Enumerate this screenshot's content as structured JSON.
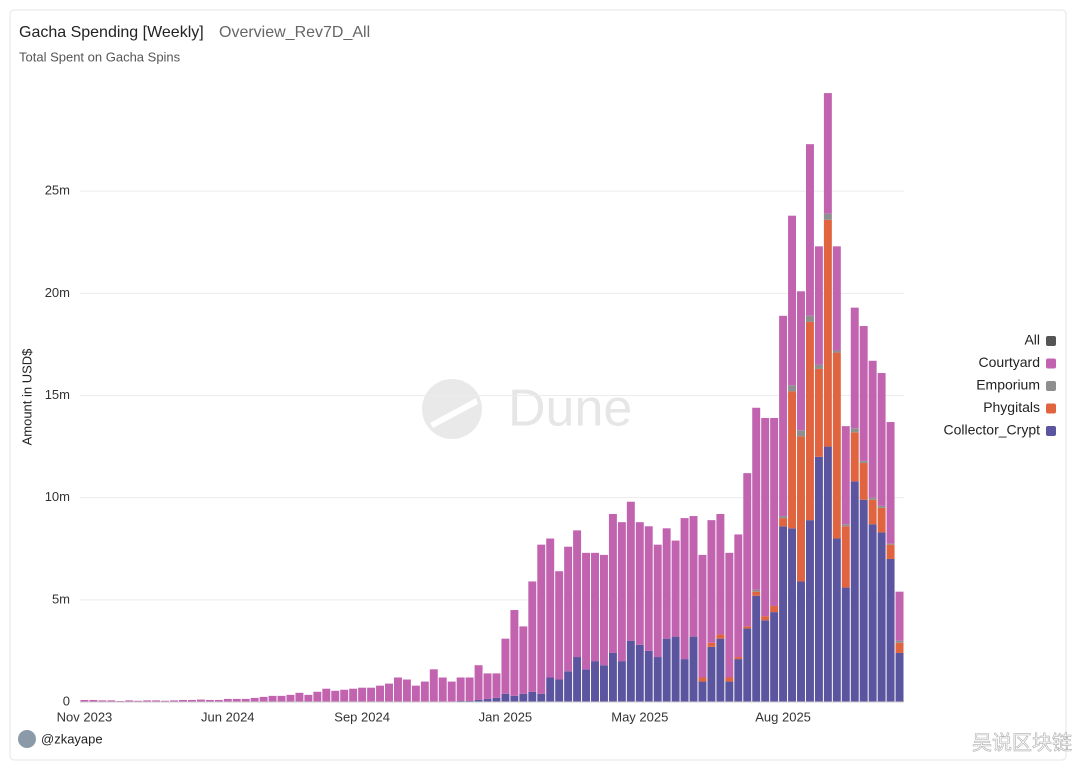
{
  "chart_data": {
    "type": "stacked_bar",
    "title": "Gacha Spending [Weekly]",
    "subtitle": "Overview_Rev7D_All",
    "caption": "Total Spent on Gacha Spins",
    "y_label": "Amount in USD$",
    "author": "@zkayape",
    "watermarks": [
      "Dune",
      "吴说区块链"
    ],
    "grid": true,
    "legend": "right",
    "ylim": [
      0,
      30
    ],
    "yticks": [
      0,
      {
        "value": 5,
        "label": "5m"
      },
      {
        "value": 10,
        "label": "10m"
      },
      {
        "value": 15,
        "label": "15m"
      },
      {
        "value": 20,
        "label": "20m"
      },
      {
        "value": 25,
        "label": "25m"
      }
    ],
    "categories": [
      "Nov 2023",
      null,
      null,
      null,
      null,
      null,
      null,
      null,
      null,
      null,
      null,
      null,
      null,
      null,
      null,
      null,
      "Jun 2024",
      null,
      null,
      null,
      null,
      null,
      null,
      null,
      null,
      null,
      null,
      null,
      null,
      null,
      null,
      "Sep 2024",
      null,
      null,
      null,
      null,
      null,
      null,
      null,
      null,
      null,
      null,
      null,
      null,
      null,
      null,
      null,
      "Jan 2025",
      null,
      null,
      null,
      null,
      null,
      null,
      null,
      null,
      null,
      null,
      null,
      null,
      null,
      null,
      "May 2025",
      null,
      null,
      null,
      null,
      null,
      null,
      null,
      null,
      null,
      null,
      null,
      null,
      null,
      null,
      null,
      "Aug 2025",
      null,
      null,
      null,
      null,
      null,
      null,
      null,
      null,
      null,
      null,
      null,
      null,
      null
    ],
    "series": [
      {
        "name": "All",
        "color": "#555555"
      },
      {
        "name": "Courtyard",
        "color": "#c263b0",
        "values": [
          0.1,
          0.1,
          0.08,
          0.08,
          0.05,
          0.08,
          0.06,
          0.08,
          0.08,
          0.06,
          0.08,
          0.1,
          0.1,
          0.12,
          0.1,
          0.1,
          0.15,
          0.15,
          0.15,
          0.2,
          0.25,
          0.3,
          0.3,
          0.35,
          0.45,
          0.35,
          0.5,
          0.65,
          0.55,
          0.6,
          0.65,
          0.7,
          0.7,
          0.8,
          0.9,
          1.2,
          1.1,
          0.8,
          1.0,
          1.6,
          1.2,
          1.0,
          1.15,
          1.15,
          1.7,
          1.25,
          1.2,
          2.7,
          4.2,
          3.3,
          5.4,
          7.3,
          6.8,
          5.3,
          6.1,
          6.2,
          5.7,
          5.3,
          5.4,
          6.8,
          6.8,
          6.8,
          6.0,
          6.1,
          5.5,
          5.4,
          4.7,
          6.9,
          5.9,
          6.0,
          6.0,
          5.9,
          6.1,
          6.0,
          7.5,
          8.9,
          9.7,
          9.2,
          9.8,
          8.3,
          6.8,
          8.4,
          5.8,
          5.9,
          5.1,
          4.8,
          5.9,
          6.6,
          6.7,
          6.5,
          5.95,
          2.4
        ]
      },
      {
        "name": "Emporium",
        "color": "#8f8f8f",
        "values": [
          0,
          0,
          0,
          0,
          0,
          0,
          0,
          0,
          0,
          0,
          0,
          0,
          0,
          0,
          0,
          0,
          0,
          0,
          0,
          0,
          0,
          0,
          0,
          0,
          0,
          0,
          0,
          0,
          0,
          0,
          0,
          0,
          0,
          0,
          0,
          0,
          0,
          0,
          0,
          0,
          0,
          0,
          0,
          0,
          0,
          0,
          0,
          0,
          0,
          0,
          0,
          0,
          0,
          0,
          0,
          0,
          0,
          0,
          0,
          0,
          0,
          0,
          0,
          0,
          0,
          0,
          0,
          0,
          0,
          0,
          0,
          0,
          0,
          0,
          0,
          0.1,
          0,
          0,
          0.1,
          0.3,
          0.3,
          0.3,
          0.2,
          0.3,
          0.1,
          0.1,
          0.2,
          0.1,
          0.1,
          0.1,
          0.05,
          0.1
        ]
      },
      {
        "name": "Phygitals",
        "color": "#e0643f",
        "values": [
          0,
          0,
          0,
          0,
          0,
          0,
          0,
          0,
          0,
          0,
          0,
          0,
          0,
          0,
          0,
          0,
          0,
          0,
          0,
          0,
          0,
          0,
          0,
          0,
          0,
          0,
          0,
          0,
          0,
          0,
          0,
          0,
          0,
          0,
          0,
          0,
          0,
          0,
          0,
          0,
          0,
          0,
          0,
          0,
          0,
          0,
          0,
          0,
          0,
          0,
          0,
          0,
          0,
          0,
          0,
          0,
          0,
          0,
          0,
          0,
          0,
          0,
          0,
          0,
          0,
          0,
          0,
          0,
          0,
          0.2,
          0.2,
          0.2,
          0.2,
          0.1,
          0.1,
          0.2,
          0.2,
          0.3,
          0.4,
          6.7,
          7.1,
          9.7,
          4.3,
          11.1,
          9.1,
          3.0,
          2.4,
          1.8,
          1.2,
          1.2,
          0.7,
          0.5
        ]
      },
      {
        "name": "Collector_Crypt",
        "color": "#5b559f",
        "values": [
          0,
          0,
          0,
          0,
          0,
          0,
          0,
          0,
          0,
          0,
          0,
          0,
          0,
          0,
          0,
          0,
          0,
          0,
          0,
          0,
          0,
          0,
          0,
          0,
          0,
          0,
          0,
          0,
          0,
          0,
          0,
          0,
          0,
          0,
          0,
          0,
          0,
          0,
          0,
          0,
          0,
          0,
          0.05,
          0.05,
          0.1,
          0.15,
          0.2,
          0.4,
          0.3,
          0.4,
          0.5,
          0.4,
          1.2,
          1.1,
          1.5,
          2.2,
          1.6,
          2.0,
          1.8,
          2.4,
          2.0,
          3.0,
          2.8,
          2.5,
          2.2,
          3.1,
          3.2,
          2.1,
          3.2,
          1.0,
          2.7,
          3.1,
          1.0,
          2.1,
          3.6,
          5.2,
          4.0,
          4.4,
          8.6,
          8.5,
          5.9,
          8.9,
          12.0,
          12.5,
          8.0,
          5.6,
          10.8,
          9.9,
          8.7,
          8.3,
          7.0,
          2.4
        ]
      }
    ]
  }
}
